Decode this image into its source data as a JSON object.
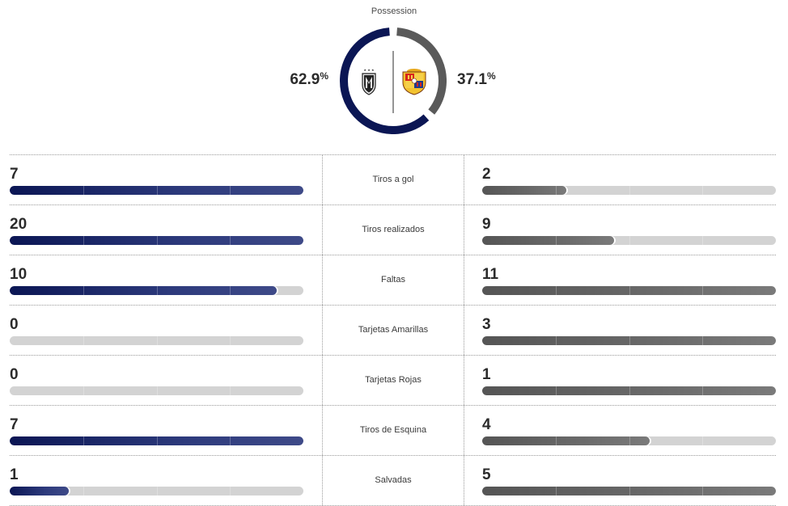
{
  "possession": {
    "title": "Possession",
    "home": {
      "value": "62.9",
      "unit": "%",
      "fraction": 0.629,
      "color": "#0b1654"
    },
    "away": {
      "value": "37.1",
      "unit": "%",
      "fraction": 0.371,
      "color": "#5a5a5a"
    }
  },
  "colors": {
    "home_bar": "#0b1654",
    "away_bar": "#5a5a5a",
    "track": "#d3d3d3"
  },
  "stats": [
    {
      "label": "Tiros a gol",
      "home": "7",
      "away": "2",
      "home_frac": 1.0,
      "away_frac": 0.286
    },
    {
      "label": "Tiros realizados",
      "home": "20",
      "away": "9",
      "home_frac": 1.0,
      "away_frac": 0.45
    },
    {
      "label": "Faltas",
      "home": "10",
      "away": "11",
      "home_frac": 0.909,
      "away_frac": 1.0
    },
    {
      "label": "Tarjetas Amarillas",
      "home": "0",
      "away": "3",
      "home_frac": 0.0,
      "away_frac": 1.0
    },
    {
      "label": "Tarjetas Rojas",
      "home": "0",
      "away": "1",
      "home_frac": 0.0,
      "away_frac": 1.0
    },
    {
      "label": "Tiros de Esquina",
      "home": "7",
      "away": "4",
      "home_frac": 1.0,
      "away_frac": 0.571
    },
    {
      "label": "Salvadas",
      "home": "1",
      "away": "5",
      "home_frac": 0.2,
      "away_frac": 1.0
    }
  ],
  "icons": {
    "home_crest": "independiente-del-valle-crest-icon",
    "away_crest": "barcelona-sc-crest-icon"
  }
}
